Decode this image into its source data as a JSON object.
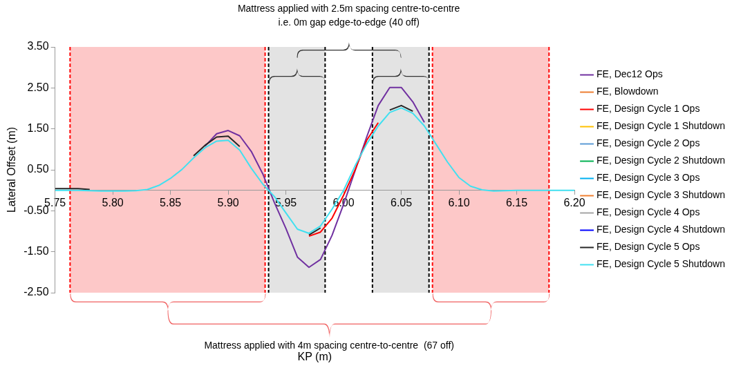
{
  "chart_data": {
    "type": "line",
    "xlabel": "KP (m)",
    "ylabel": "Lateral Offset (m)",
    "xlim": [
      5.75,
      6.2
    ],
    "xticks": [
      5.75,
      {
        "value": 5.8,
        "label": "5.80"
      },
      5.85,
      {
        "value": 5.9,
        "label": "5.90"
      },
      5.95,
      {
        "value": 6.0,
        "label": "6.00"
      },
      6.05,
      {
        "value": 6.1,
        "label": "6.10"
      },
      6.15,
      {
        "value": 6.2,
        "label": "6.20"
      }
    ],
    "ylim": [
      -2.5,
      3.5
    ],
    "yticks": [
      {
        "value": -2.5,
        "label": "-2.50"
      },
      {
        "value": -1.5,
        "label": "-1.50"
      },
      {
        "value": -0.5,
        "label": "-0.50"
      },
      {
        "value": 0.5,
        "label": "0.50"
      },
      {
        "value": 1.5,
        "label": "1.50"
      },
      {
        "value": 2.5,
        "label": "2.50"
      },
      {
        "value": 3.5,
        "label": "3.50"
      }
    ],
    "grid": false,
    "legend": "right",
    "marker": "none",
    "line_style": "solid",
    "x": [
      5.75,
      5.76,
      5.77,
      5.78,
      5.79,
      5.8,
      5.81,
      5.82,
      5.83,
      5.84,
      5.85,
      5.86,
      5.87,
      5.88,
      5.89,
      5.9,
      5.91,
      5.92,
      5.93,
      5.94,
      5.95,
      5.96,
      5.97,
      5.98,
      5.99,
      6.0,
      6.01,
      6.02,
      6.03,
      6.04,
      6.05,
      6.06,
      6.07,
      6.08,
      6.09,
      6.1,
      6.11,
      6.12,
      6.13,
      6.14,
      6.15,
      6.16,
      6.17,
      6.18,
      6.19,
      6.2
    ],
    "series": [
      {
        "name": "FE, Dec12 Ops",
        "color": "#7030a0",
        "values": [
          null,
          null,
          null,
          null,
          null,
          null,
          null,
          null,
          null,
          null,
          null,
          null,
          null,
          1.08,
          1.38,
          1.46,
          1.33,
          0.95,
          0.4,
          -0.3,
          -0.93,
          -1.63,
          -1.88,
          -1.69,
          -1.1,
          -0.34,
          0.48,
          1.3,
          2.07,
          2.51,
          2.51,
          2.16,
          1.66,
          null,
          null,
          null,
          null,
          null,
          null,
          null,
          null,
          null,
          null,
          null,
          null,
          null
        ]
      },
      {
        "name": "FE, Blowdown",
        "color": "#ed7d31",
        "values": [
          null,
          null,
          null,
          null,
          null,
          null,
          null,
          null,
          null,
          null,
          null,
          null,
          null,
          null,
          null,
          null,
          null,
          null,
          null,
          null,
          null,
          null,
          null,
          null,
          null,
          null,
          null,
          null,
          null,
          null,
          null,
          null,
          null,
          null,
          null,
          null,
          null,
          null,
          null,
          null,
          null,
          null,
          null,
          null,
          null,
          null
        ]
      },
      {
        "name": "FE, Design Cycle 1 Ops",
        "color": "#ff0000",
        "values": [
          null,
          null,
          null,
          null,
          null,
          null,
          null,
          null,
          null,
          null,
          null,
          null,
          null,
          null,
          null,
          null,
          null,
          null,
          null,
          null,
          null,
          null,
          -1.12,
          -1.02,
          -0.68,
          -0.12,
          0.5,
          1.22,
          1.65,
          null,
          null,
          null,
          null,
          null,
          null,
          null,
          null,
          null,
          null,
          null,
          null,
          null,
          null,
          null,
          null,
          null
        ]
      },
      {
        "name": "FE, Design Cycle 1 Shutdown",
        "color": "#ffc000",
        "values": [
          null,
          null,
          null,
          null,
          null,
          null,
          null,
          null,
          null,
          null,
          null,
          null,
          null,
          null,
          null,
          null,
          null,
          null,
          null,
          null,
          null,
          null,
          null,
          null,
          null,
          null,
          null,
          null,
          null,
          null,
          null,
          null,
          null,
          null,
          null,
          null,
          null,
          null,
          null,
          null,
          null,
          null,
          null,
          null,
          null,
          null
        ]
      },
      {
        "name": "FE, Design Cycle 2 Ops",
        "color": "#5b9bd5",
        "values": [
          null,
          null,
          null,
          null,
          null,
          null,
          null,
          null,
          null,
          null,
          null,
          null,
          null,
          null,
          null,
          null,
          null,
          null,
          null,
          null,
          null,
          null,
          null,
          null,
          null,
          null,
          null,
          null,
          null,
          null,
          null,
          null,
          null,
          null,
          null,
          null,
          null,
          null,
          null,
          null,
          null,
          null,
          null,
          null,
          null,
          null
        ]
      },
      {
        "name": "FE, Design Cycle 2 Shutdown",
        "color": "#00b050",
        "values": [
          null,
          null,
          null,
          null,
          null,
          null,
          null,
          null,
          null,
          null,
          null,
          null,
          null,
          null,
          null,
          null,
          null,
          null,
          null,
          null,
          null,
          null,
          null,
          null,
          null,
          null,
          null,
          null,
          null,
          null,
          null,
          null,
          null,
          null,
          null,
          null,
          null,
          null,
          null,
          null,
          null,
          null,
          null,
          null,
          null,
          null
        ]
      },
      {
        "name": "FE, Design Cycle 3 Ops",
        "color": "#00b0f0",
        "values": [
          null,
          null,
          null,
          null,
          null,
          null,
          null,
          null,
          null,
          null,
          null,
          null,
          null,
          null,
          null,
          null,
          null,
          null,
          null,
          null,
          null,
          null,
          null,
          null,
          null,
          null,
          null,
          null,
          null,
          null,
          null,
          null,
          null,
          null,
          null,
          null,
          null,
          null,
          null,
          null,
          null,
          null,
          null,
          null,
          null,
          null
        ]
      },
      {
        "name": "FE, Design Cycle 3 Shutdown",
        "color": "#f08030",
        "values": [
          null,
          null,
          null,
          null,
          null,
          null,
          null,
          null,
          null,
          null,
          null,
          null,
          null,
          null,
          null,
          null,
          null,
          null,
          null,
          null,
          null,
          null,
          null,
          null,
          null,
          null,
          null,
          null,
          null,
          null,
          null,
          null,
          null,
          null,
          null,
          null,
          null,
          null,
          null,
          null,
          null,
          null,
          null,
          null,
          null,
          null
        ]
      },
      {
        "name": "FE, Design Cycle 4 Ops",
        "color": "#a5a5a5",
        "values": [
          null,
          null,
          null,
          null,
          null,
          null,
          null,
          null,
          null,
          null,
          null,
          null,
          null,
          null,
          null,
          null,
          null,
          null,
          null,
          null,
          null,
          null,
          null,
          null,
          null,
          null,
          null,
          null,
          null,
          null,
          null,
          null,
          null,
          null,
          null,
          null,
          null,
          null,
          null,
          null,
          null,
          null,
          null,
          null,
          null,
          null
        ]
      },
      {
        "name": "FE, Design Cycle 4 Shutdown",
        "color": "#0000ff",
        "values": [
          null,
          null,
          null,
          null,
          null,
          null,
          null,
          null,
          null,
          null,
          null,
          null,
          null,
          null,
          null,
          null,
          null,
          null,
          null,
          null,
          null,
          null,
          null,
          null,
          null,
          null,
          null,
          null,
          null,
          null,
          null,
          null,
          null,
          null,
          null,
          null,
          null,
          null,
          null,
          null,
          null,
          null,
          null,
          null,
          null,
          null
        ]
      },
      {
        "name": "FE, Design Cycle 5 Ops",
        "color": "#262626",
        "values": [
          0.04,
          0.04,
          0.04,
          0.02,
          null,
          null,
          null,
          null,
          null,
          null,
          null,
          null,
          0.84,
          1.1,
          1.3,
          1.32,
          1.07,
          null,
          null,
          null,
          null,
          null,
          -1.09,
          -0.92,
          null,
          null,
          null,
          null,
          null,
          1.96,
          2.07,
          1.93,
          null,
          null,
          null,
          null,
          null,
          null,
          null,
          null,
          null,
          null,
          null,
          null,
          null,
          null
        ]
      },
      {
        "name": "FE, Design Cycle 5 Shutdown",
        "color": "#40e0f0",
        "values": [
          0,
          0,
          0,
          -0.01,
          -0.02,
          -0.02,
          -0.02,
          -0.01,
          0.02,
          0.12,
          0.29,
          0.51,
          0.79,
          1.04,
          1.2,
          1.22,
          0.98,
          0.54,
          0.15,
          -0.15,
          -0.55,
          -0.95,
          -1.05,
          -0.87,
          -0.46,
          0.0,
          0.6,
          1.13,
          1.57,
          1.9,
          2.01,
          1.88,
          1.57,
          1.13,
          0.69,
          0.31,
          0.1,
          0.01,
          -0.02,
          -0.01,
          0,
          0,
          0,
          0,
          0,
          0
        ]
      }
    ],
    "bands": [
      {
        "axis": "x",
        "from": 5.763,
        "to": 5.932,
        "color": "#fdc8c8"
      },
      {
        "axis": "x",
        "from": 5.935,
        "to": 5.984,
        "color": "#e3e3e3"
      },
      {
        "axis": "x",
        "from": 6.025,
        "to": 6.074,
        "color": "#e3e3e3"
      },
      {
        "axis": "x",
        "from": 6.077,
        "to": 6.178,
        "color": "#fdc8c8"
      }
    ],
    "ref_lines": [
      {
        "axis": "x",
        "value": 5.763,
        "color": "#ff0000",
        "line_style": "dashed"
      },
      {
        "axis": "x",
        "value": 5.932,
        "color": "#ff0000",
        "line_style": "dashed"
      },
      {
        "axis": "x",
        "value": 5.935,
        "color": "#000000",
        "line_style": "dashed"
      },
      {
        "axis": "x",
        "value": 5.984,
        "color": "#000000",
        "line_style": "dashed"
      },
      {
        "axis": "x",
        "value": 6.025,
        "color": "#000000",
        "line_style": "dashed"
      },
      {
        "axis": "x",
        "value": 6.074,
        "color": "#000000",
        "line_style": "dashed"
      },
      {
        "axis": "x",
        "value": 6.077,
        "color": "#ff0000",
        "line_style": "dashed"
      },
      {
        "axis": "x",
        "value": 6.178,
        "color": "#ff0000",
        "line_style": "dashed"
      }
    ],
    "annotations": [
      "Mattress applied with 2.5m spacing centre-to-centre\ni.e. 0m gap edge-to-edge (40 off)",
      "Mattress applied with 4m spacing centre-to-centre  (67 off)"
    ]
  }
}
